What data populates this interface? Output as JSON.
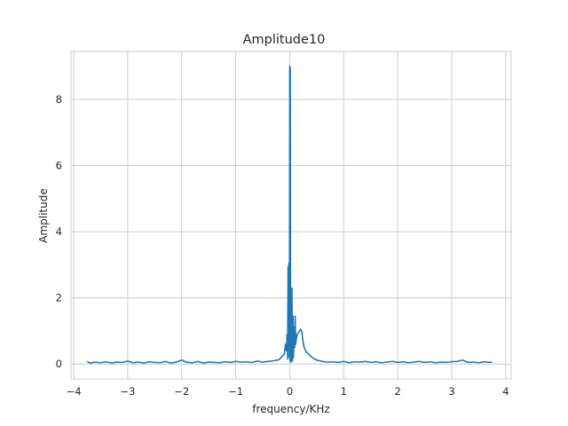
{
  "chart_data": {
    "type": "line",
    "title": "Amplitude10",
    "xlabel": "frequency/KHz",
    "ylabel": "Amplitude",
    "xlim": [
      -4.05,
      4.1
    ],
    "ylim": [
      -0.45,
      9.45
    ],
    "xticks": [
      -4,
      -3,
      -2,
      -1,
      0,
      1,
      2,
      3,
      4
    ],
    "xtick_labels": [
      "−4",
      "−3",
      "−2",
      "−1",
      "0",
      "1",
      "2",
      "3",
      "4"
    ],
    "yticks": [
      0,
      2,
      4,
      6,
      8
    ],
    "ytick_labels": [
      "0",
      "2",
      "4",
      "6",
      "8"
    ],
    "grid": true,
    "color": "#1f77b4",
    "series": [
      {
        "name": "",
        "x": [
          -3.75,
          -3.7,
          -3.6,
          -3.5,
          -3.4,
          -3.3,
          -3.2,
          -3.1,
          -3.0,
          -2.9,
          -2.8,
          -2.7,
          -2.6,
          -2.5,
          -2.4,
          -2.3,
          -2.2,
          -2.1,
          -2.0,
          -1.9,
          -1.8,
          -1.7,
          -1.6,
          -1.5,
          -1.4,
          -1.3,
          -1.2,
          -1.1,
          -1.0,
          -0.9,
          -0.8,
          -0.7,
          -0.6,
          -0.5,
          -0.4,
          -0.3,
          -0.2,
          -0.15,
          -0.1,
          -0.08,
          -0.06,
          -0.05,
          -0.04,
          -0.03,
          -0.02,
          -0.015,
          -0.01,
          -0.005,
          0.0,
          0.005,
          0.01,
          0.015,
          0.02,
          0.025,
          0.03,
          0.035,
          0.04,
          0.05,
          0.06,
          0.07,
          0.08,
          0.09,
          0.1,
          0.11,
          0.12,
          0.14,
          0.16,
          0.18,
          0.2,
          0.22,
          0.24,
          0.26,
          0.28,
          0.3,
          0.35,
          0.4,
          0.45,
          0.5,
          0.55,
          0.6,
          0.7,
          0.8,
          0.9,
          1.0,
          1.1,
          1.2,
          1.3,
          1.4,
          1.5,
          1.6,
          1.7,
          1.8,
          1.9,
          2.0,
          2.1,
          2.2,
          2.3,
          2.4,
          2.5,
          2.6,
          2.7,
          2.8,
          2.9,
          3.0,
          3.1,
          3.2,
          3.3,
          3.4,
          3.5,
          3.6,
          3.7,
          3.75
        ],
        "y": [
          0.08,
          0.03,
          0.06,
          0.04,
          0.07,
          0.03,
          0.06,
          0.05,
          0.09,
          0.04,
          0.06,
          0.03,
          0.07,
          0.05,
          0.04,
          0.08,
          0.03,
          0.06,
          0.12,
          0.05,
          0.04,
          0.08,
          0.03,
          0.06,
          0.05,
          0.04,
          0.07,
          0.05,
          0.08,
          0.06,
          0.07,
          0.05,
          0.09,
          0.06,
          0.08,
          0.1,
          0.13,
          0.22,
          0.3,
          0.6,
          0.4,
          0.9,
          0.15,
          2.95,
          0.5,
          3.05,
          0.2,
          1.4,
          9.0,
          0.1,
          8.95,
          0.3,
          2.1,
          0.05,
          2.0,
          0.5,
          2.3,
          0.1,
          1.45,
          0.2,
          1.1,
          0.5,
          1.45,
          0.6,
          0.75,
          0.9,
          0.95,
          1.0,
          1.05,
          1.0,
          0.75,
          0.55,
          0.45,
          0.38,
          0.3,
          0.22,
          0.16,
          0.12,
          0.1,
          0.08,
          0.06,
          0.07,
          0.05,
          0.08,
          0.04,
          0.07,
          0.06,
          0.08,
          0.05,
          0.07,
          0.04,
          0.06,
          0.08,
          0.05,
          0.07,
          0.04,
          0.06,
          0.08,
          0.05,
          0.07,
          0.04,
          0.06,
          0.05,
          0.07,
          0.08,
          0.12,
          0.05,
          0.06,
          0.04,
          0.07,
          0.05,
          0.06
        ]
      }
    ]
  }
}
